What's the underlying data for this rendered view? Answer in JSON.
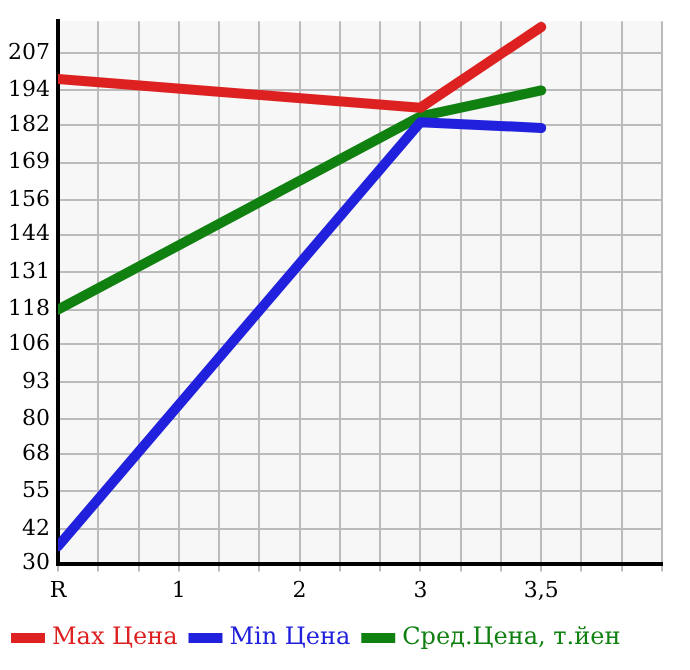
{
  "chart_data": {
    "type": "line",
    "categories": [
      "R",
      "1",
      "2",
      "3",
      "3,5"
    ],
    "series": [
      {
        "name": "Max Цена",
        "color": "#dd2020",
        "values": [
          198,
          null,
          null,
          188,
          216
        ]
      },
      {
        "name": "Min Цена",
        "color": "#2020dd",
        "values": [
          36,
          null,
          null,
          183,
          181
        ]
      },
      {
        "name": "Сред.Цена, т.йен",
        "color": "#108010",
        "values": [
          118,
          null,
          null,
          185,
          194
        ]
      }
    ],
    "ylim": [
      30,
      218
    ],
    "yticks": [
      30,
      42,
      55,
      68,
      80,
      93,
      106,
      118,
      131,
      144,
      156,
      169,
      182,
      194,
      207
    ],
    "grid": true,
    "legend": "bottom",
    "marker": "none",
    "line_style": "solid"
  }
}
